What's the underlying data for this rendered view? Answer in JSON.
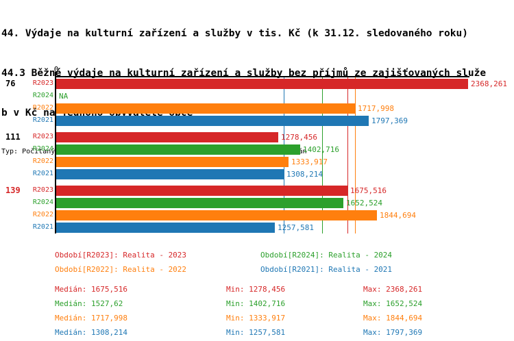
{
  "title": {
    "line1": "44. Výdaje na kulturní zařízení a služby v tis. Kč (k 31.12. sledovaného roku)",
    "line2": "44.3 Běžné výdaje na kulturní zařízení a služby bez příjmů ze zajišťovaných služe",
    "line3": "b v Kč na jednoho obyvatele obce",
    "subtitle": "Typ: Počítaný podle vzorce, Vyhodnocení: Absolutní hodnoty, Průměr: Medián"
  },
  "colors": {
    "R2023": "#d62728",
    "R2024": "#2ca02c",
    "R2022": "#ff7f0e",
    "R2021": "#1f77b4",
    "axis": "#000000",
    "group_label_default": "#000000",
    "group_label_highlight": "#d62728"
  },
  "chart_data": {
    "type": "bar",
    "orientation": "horizontal",
    "axis_origin_label": "0",
    "x_min": 0,
    "x_max": 2368.261,
    "series_order": [
      "R2023",
      "R2024",
      "R2022",
      "R2021"
    ],
    "groups": [
      {
        "label": "76",
        "label_color": "#000000",
        "bars": [
          {
            "series": "R2023",
            "value": 2368.261,
            "display": "2368,261"
          },
          {
            "series": "R2024",
            "value": null,
            "display": "NA"
          },
          {
            "series": "R2022",
            "value": 1717.998,
            "display": "1717,998"
          },
          {
            "series": "R2021",
            "value": 1797.369,
            "display": "1797,369"
          }
        ]
      },
      {
        "label": "111",
        "label_color": "#000000",
        "bars": [
          {
            "series": "R2023",
            "value": 1278.456,
            "display": "1278,456"
          },
          {
            "series": "R2024",
            "value": 1402.716,
            "display": "1402,716"
          },
          {
            "series": "R2022",
            "value": 1333.917,
            "display": "1333,917"
          },
          {
            "series": "R2021",
            "value": 1308.214,
            "display": "1308,214"
          }
        ]
      },
      {
        "label": "139",
        "label_color": "#d62728",
        "bars": [
          {
            "series": "R2023",
            "value": 1675.516,
            "display": "1675,516"
          },
          {
            "series": "R2024",
            "value": 1652.524,
            "display": "1652,524"
          },
          {
            "series": "R2022",
            "value": 1844.694,
            "display": "1844,694"
          },
          {
            "series": "R2021",
            "value": 1257.581,
            "display": "1257,581"
          }
        ]
      }
    ],
    "median_lines": [
      {
        "series": "R2021",
        "value": 1308.214
      },
      {
        "series": "R2024",
        "value": 1527.62
      },
      {
        "series": "R2023",
        "value": 1675.516
      },
      {
        "series": "R2022",
        "value": 1717.998
      }
    ]
  },
  "legend": [
    {
      "series": "R2023",
      "label": "Období[R2023]: Realita - 2023"
    },
    {
      "series": "R2024",
      "label": "Období[R2024]: Realita - 2024"
    },
    {
      "series": "R2022",
      "label": "Období[R2022]: Realita - 2022"
    },
    {
      "series": "R2021",
      "label": "Období[R2021]: Realita - 2021"
    }
  ],
  "stats": {
    "median_label": "Medián",
    "min_label": "Min",
    "max_label": "Max",
    "rows": [
      {
        "series": "R2023",
        "median": "1675,516",
        "min": "1278,456",
        "max": "2368,261"
      },
      {
        "series": "R2024",
        "median": "1527,62",
        "min": "1402,716",
        "max": "1652,524"
      },
      {
        "series": "R2022",
        "median": "1717,998",
        "min": "1333,917",
        "max": "1844,694"
      },
      {
        "series": "R2021",
        "median": "1308,214",
        "min": "1257,581",
        "max": "1797,369"
      }
    ]
  }
}
